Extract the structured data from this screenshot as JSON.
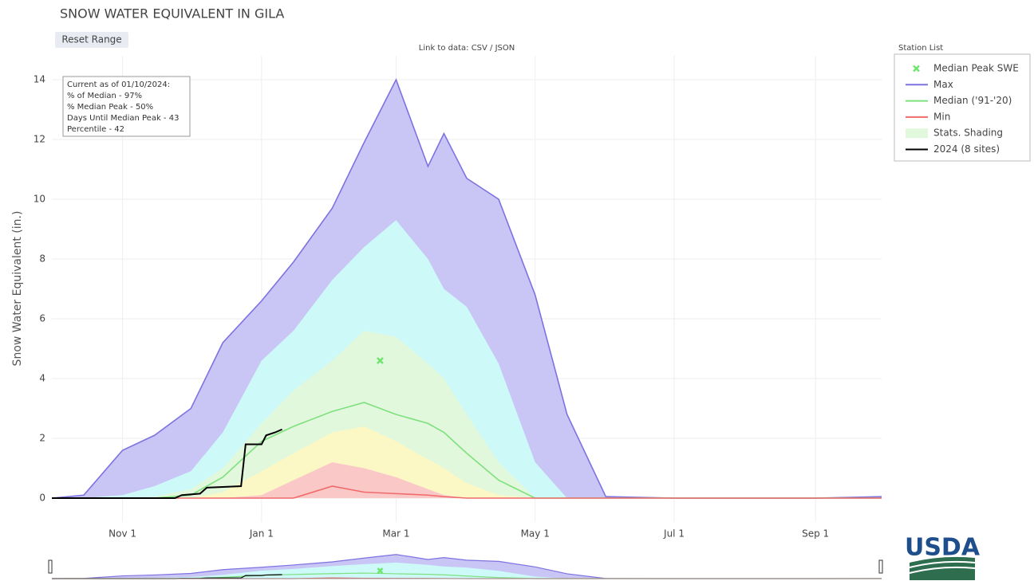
{
  "chart_data": {
    "type": "area",
    "title": "SNOW WATER EQUIVALENT IN GILA",
    "button": "Reset Range",
    "link": "Link to data: CSV / JSON",
    "legend_title": "Station List",
    "ylabel": "Snow Water Equivalent (in.)",
    "logo": "USDA",
    "info": [
      "Current as of 01/10/2024:",
      "% of Median - 97%",
      "% Median Peak - 50%",
      "Days Until Median Peak - 43",
      "Percentile - 42"
    ],
    "xlim": [
      "Oct 1",
      "Sep 30"
    ],
    "xticks": [
      "Nov 1",
      "Jan 1",
      "Mar 1",
      "May 1",
      "Jul 1",
      "Sep 1"
    ],
    "ylim": [
      -0.8,
      14.8
    ],
    "yticks": [
      0,
      2,
      4,
      6,
      8,
      10,
      12,
      14
    ],
    "grid": true,
    "x": [
      "Oct 1",
      "Oct 15",
      "Nov 1",
      "Nov 15",
      "Dec 1",
      "Dec 15",
      "Jan 1",
      "Jan 15",
      "Feb 1",
      "Feb 15",
      "Mar 1",
      "Mar 15",
      "Mar 22",
      "Apr 1",
      "Apr 15",
      "May 1",
      "May 15",
      "Jun 1",
      "Jul 1",
      "Aug 1",
      "Sep 1",
      "Sep 30"
    ],
    "markers": {
      "name": "Median Peak SWE",
      "color": "#6ee66e",
      "x": [
        "Feb 22"
      ],
      "values": [
        4.6
      ]
    },
    "series": [
      {
        "name": "Max",
        "color": "#7d72e0",
        "fill": "#c9c6f6",
        "values": [
          0,
          0.1,
          1.6,
          2.1,
          3.0,
          5.2,
          6.6,
          7.9,
          9.7,
          11.9,
          14.0,
          11.1,
          12.2,
          10.7,
          10.0,
          6.8,
          2.8,
          0.05,
          0,
          0,
          0,
          0.05
        ]
      },
      {
        "name": "Median ('91-'20)",
        "color": "#7ee07e",
        "values": [
          0,
          0,
          0,
          0,
          0.1,
          0.7,
          1.9,
          2.4,
          2.9,
          3.2,
          2.8,
          2.5,
          2.2,
          1.5,
          0.6,
          0,
          0,
          0,
          0,
          0,
          0,
          0
        ]
      },
      {
        "name": "Min",
        "color": "#f06a6a",
        "values": [
          0,
          0,
          0,
          0,
          0,
          0,
          0,
          0,
          0.4,
          0.2,
          0.15,
          0.1,
          0.05,
          0,
          0,
          0,
          0,
          0,
          0,
          0,
          0,
          0
        ]
      },
      {
        "name": "2024 (8 sites)",
        "color": "#000000",
        "x": [
          "Oct 1",
          "Nov 24",
          "Nov 27",
          "Dec 5",
          "Dec 8",
          "Dec 23",
          "Dec 25",
          "Jan 1",
          "Jan 3",
          "Jan 7",
          "Jan 10"
        ],
        "values": [
          0,
          0,
          0.1,
          0.15,
          0.35,
          0.4,
          1.8,
          1.8,
          2.1,
          2.2,
          2.3
        ]
      }
    ],
    "shading": {
      "name": "Stats. Shading",
      "color": "#e2f8dc",
      "bands": [
        {
          "color": "#cdf9f9",
          "values": [
            0,
            0,
            0.1,
            0.4,
            0.9,
            2.2,
            4.6,
            5.6,
            7.3,
            8.4,
            9.3,
            8.0,
            7.0,
            6.4,
            4.5,
            1.2,
            0,
            0,
            0,
            0,
            0,
            0
          ]
        },
        {
          "color": "#e2f8dc",
          "values": [
            0,
            0,
            0,
            0.05,
            0.3,
            1.0,
            2.5,
            3.6,
            4.6,
            5.6,
            5.4,
            4.5,
            4.0,
            2.8,
            1.2,
            0,
            0,
            0,
            0,
            0,
            0,
            0
          ]
        },
        {
          "color": "#fbf8c6",
          "values": [
            0,
            0,
            0,
            0,
            0,
            0.2,
            0.9,
            1.5,
            2.2,
            2.4,
            1.9,
            1.3,
            1.0,
            0.5,
            0.1,
            0,
            0,
            0,
            0,
            0,
            0,
            0
          ]
        },
        {
          "color": "#fbc8c8",
          "values": [
            0,
            0,
            0,
            0,
            0,
            0,
            0.1,
            0.6,
            1.2,
            1.0,
            0.7,
            0.3,
            0.1,
            0,
            0,
            0,
            0,
            0,
            0,
            0,
            0,
            0
          ]
        }
      ]
    }
  }
}
